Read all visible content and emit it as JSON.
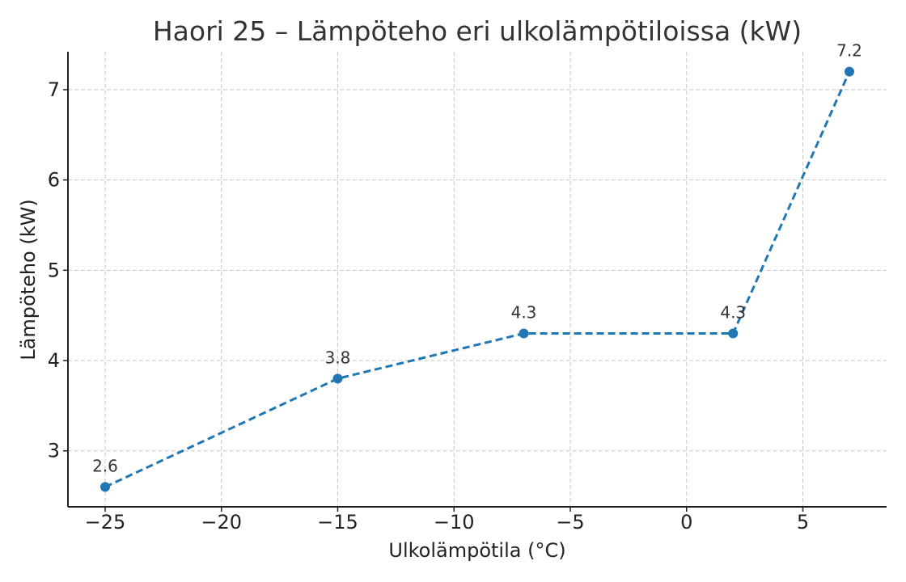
{
  "chart_data": {
    "type": "line",
    "title": "Haori 25 – Lämpöteho eri ulkolämpötiloissa (kW)",
    "xlabel": "Ulkolämpötila (°C)",
    "ylabel": "Lämpöteho (kW)",
    "x": [
      -25,
      -15,
      -7,
      2,
      7
    ],
    "series": [
      {
        "values": [
          2.6,
          3.8,
          4.3,
          4.3,
          7.2
        ],
        "labels": [
          "2.6",
          "3.8",
          "4.3",
          "4.3",
          "7.2"
        ],
        "line_style": "dashed",
        "marker": "circle",
        "color": "#1f77b4"
      }
    ],
    "xlim": [
      -26.6,
      8.6
    ],
    "ylim": [
      2.38,
      7.42
    ],
    "xticks": [
      -25,
      -20,
      -15,
      -10,
      -5,
      0,
      5
    ],
    "xtick_labels": [
      "−25",
      "−20",
      "−15",
      "−10",
      "−5",
      "0",
      "5"
    ],
    "yticks": [
      3,
      4,
      5,
      6,
      7
    ],
    "ytick_labels": [
      "3",
      "4",
      "5",
      "6",
      "7"
    ],
    "grid": true,
    "legend": "none"
  }
}
